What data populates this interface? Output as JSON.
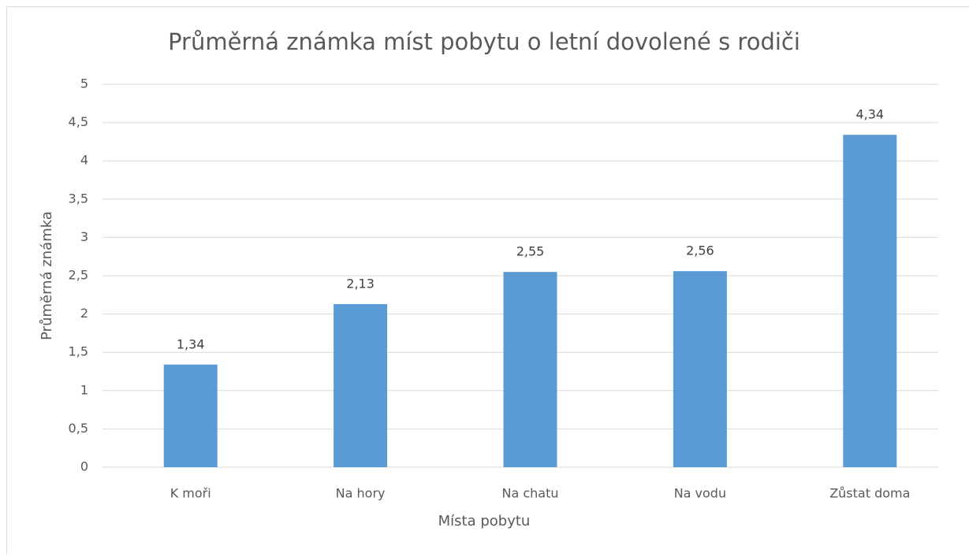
{
  "chart_data": {
    "type": "bar",
    "title": "Průměrná známka míst pobytu o letní dovolené s rodiči",
    "x_label": "Místa pobytu",
    "y_label": "Průměrná známka",
    "categories": [
      "K moři",
      "Na hory",
      "Na chatu",
      "Na vodu",
      "Zůstat doma"
    ],
    "values": [
      1.34,
      2.13,
      2.55,
      2.56,
      4.34
    ],
    "value_labels": [
      "1,34",
      "2,13",
      "2,55",
      "2,56",
      "4,34"
    ],
    "color": "#5b9bd5",
    "ylim": [
      0,
      5
    ],
    "yticks": [
      0,
      {
        "value": 0.5,
        "label": "0,5"
      },
      1,
      {
        "value": 1.5,
        "label": "1,5"
      },
      2,
      {
        "value": 2.5,
        "label": "2,5"
      },
      3,
      {
        "value": 3.5,
        "label": "3,5"
      },
      4,
      {
        "value": 4.5,
        "label": "4,5"
      },
      5
    ],
    "grid": true
  }
}
